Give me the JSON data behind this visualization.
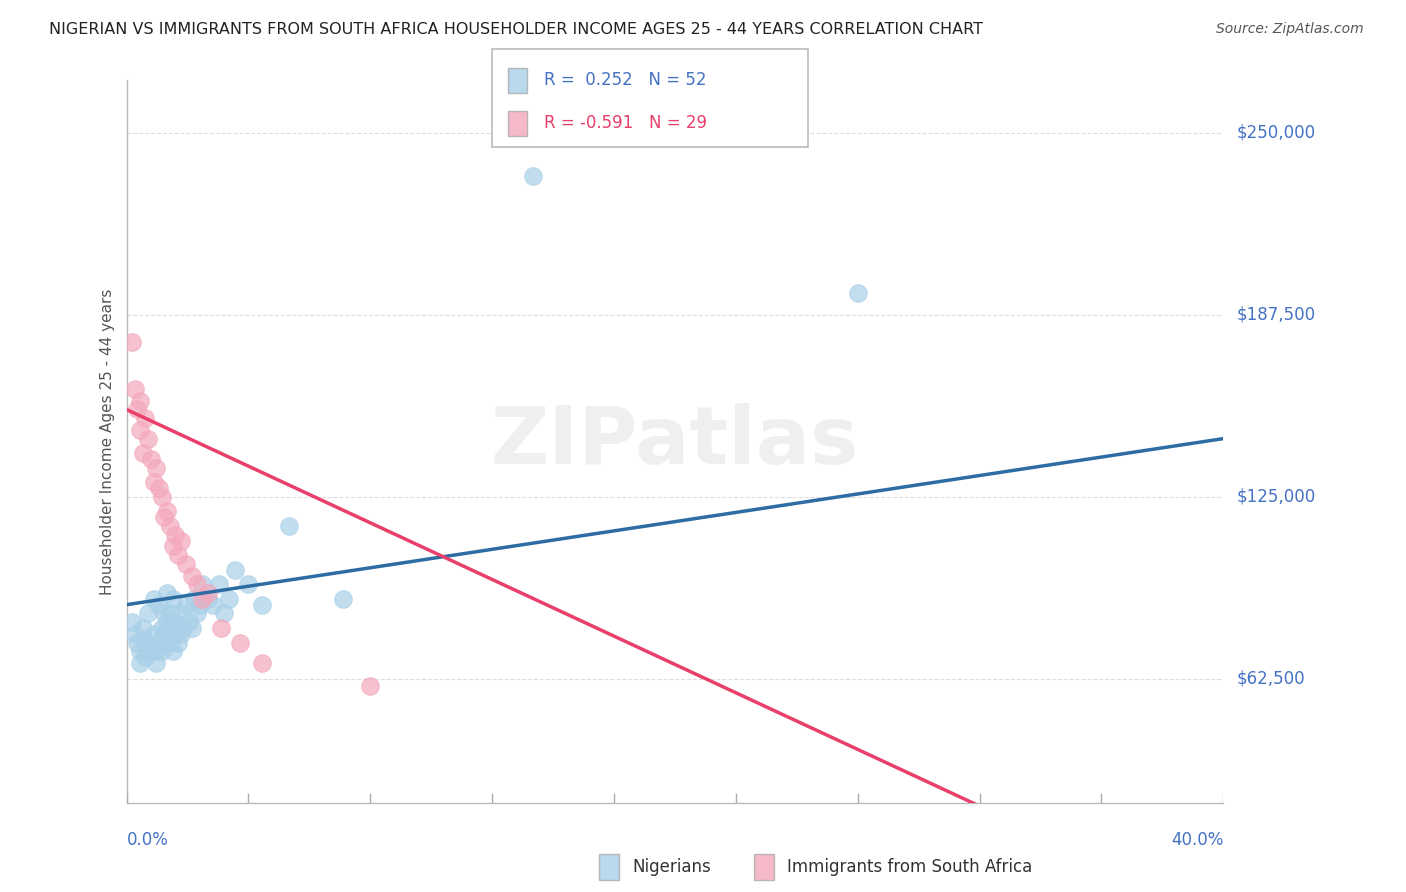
{
  "title": "NIGERIAN VS IMMIGRANTS FROM SOUTH AFRICA HOUSEHOLDER INCOME AGES 25 - 44 YEARS CORRELATION CHART",
  "source": "Source: ZipAtlas.com",
  "ylabel": "Householder Income Ages 25 - 44 years",
  "ytick_labels": [
    "$62,500",
    "$125,000",
    "$187,500",
    "$250,000"
  ],
  "ytick_values": [
    62500,
    125000,
    187500,
    250000
  ],
  "ylim": [
    20000,
    268000
  ],
  "xlim": [
    0.0,
    0.405
  ],
  "legend1_r": "R =  0.252",
  "legend1_n": "N = 52",
  "legend2_r": "R = -0.591",
  "legend2_n": "N = 29",
  "nigerian_color": "#a8d0e8",
  "sa_color": "#f4a8bc",
  "nigerian_line_color": "#2e6da4",
  "sa_line_color": "#e8406a",
  "trend_line_color": "#bbbbbb",
  "background": "#ffffff",
  "grid_color": "#dddddd",
  "nigerian_x": [
    0.002,
    0.003,
    0.004,
    0.005,
    0.005,
    0.006,
    0.007,
    0.007,
    0.008,
    0.008,
    0.009,
    0.01,
    0.01,
    0.011,
    0.011,
    0.012,
    0.012,
    0.013,
    0.013,
    0.014,
    0.014,
    0.015,
    0.015,
    0.016,
    0.016,
    0.017,
    0.017,
    0.018,
    0.018,
    0.019,
    0.02,
    0.02,
    0.021,
    0.022,
    0.023,
    0.024,
    0.025,
    0.026,
    0.027,
    0.028,
    0.03,
    0.032,
    0.034,
    0.036,
    0.038,
    0.04,
    0.045,
    0.05,
    0.06,
    0.08,
    0.15,
    0.27
  ],
  "nigerian_y": [
    82000,
    78000,
    75000,
    72000,
    68000,
    80000,
    76000,
    70000,
    85000,
    74000,
    72000,
    90000,
    78000,
    72000,
    68000,
    88000,
    75000,
    80000,
    72000,
    85000,
    78000,
    92000,
    82000,
    75000,
    85000,
    90000,
    72000,
    78000,
    82000,
    75000,
    85000,
    78000,
    80000,
    88000,
    82000,
    80000,
    90000,
    85000,
    88000,
    95000,
    90000,
    88000,
    95000,
    85000,
    90000,
    100000,
    95000,
    88000,
    115000,
    90000,
    235000,
    195000
  ],
  "sa_x": [
    0.002,
    0.003,
    0.004,
    0.005,
    0.005,
    0.006,
    0.007,
    0.008,
    0.009,
    0.01,
    0.011,
    0.012,
    0.013,
    0.014,
    0.015,
    0.016,
    0.017,
    0.018,
    0.019,
    0.02,
    0.022,
    0.024,
    0.026,
    0.028,
    0.03,
    0.035,
    0.042,
    0.05,
    0.09
  ],
  "sa_y": [
    178000,
    162000,
    155000,
    158000,
    148000,
    140000,
    152000,
    145000,
    138000,
    130000,
    135000,
    128000,
    125000,
    118000,
    120000,
    115000,
    108000,
    112000,
    105000,
    110000,
    102000,
    98000,
    95000,
    90000,
    92000,
    80000,
    75000,
    68000,
    60000
  ]
}
